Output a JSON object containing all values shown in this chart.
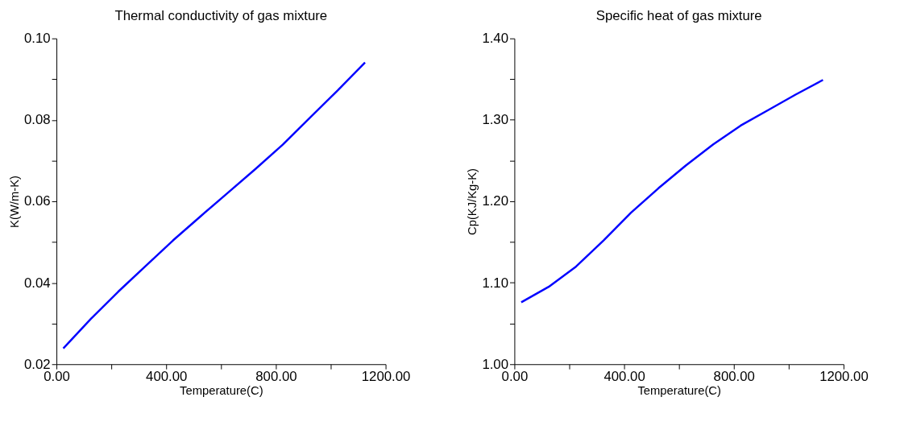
{
  "chart_data": [
    {
      "type": "line",
      "title": "Thermal conductivity of gas mixture",
      "xlabel": "Temperature(C)",
      "ylabel": "K(W/m-K)",
      "x": [
        25,
        125,
        225,
        325,
        425,
        525,
        625,
        725,
        825,
        925,
        1025,
        1125
      ],
      "series": [
        {
          "color": "#0000ff",
          "values": [
            0.0239,
            0.0311,
            0.0378,
            0.0441,
            0.0504,
            0.0563,
            0.0621,
            0.0679,
            0.0739,
            0.0806,
            0.0872,
            0.0941
          ]
        }
      ],
      "xlim": [
        0,
        1200
      ],
      "ylim": [
        0.02,
        0.1
      ],
      "xticks": [
        {
          "value": 0,
          "label": "0.00"
        },
        {
          "value": 200,
          "label": null
        },
        {
          "value": 400,
          "label": "400.00"
        },
        {
          "value": 600,
          "label": null
        },
        {
          "value": 800,
          "label": "800.00"
        },
        {
          "value": 1000,
          "label": null
        },
        {
          "value": 1200,
          "label": "1200.00"
        }
      ],
      "yticks": [
        0.02,
        {
          "value": 0.03,
          "label": null
        },
        0.04,
        {
          "value": 0.05,
          "label": null
        },
        0.06,
        {
          "value": 0.07,
          "label": null
        },
        0.08,
        {
          "value": 0.09,
          "label": null
        },
        {
          "value": 0.1,
          "label": "0.10"
        }
      ],
      "grid": false,
      "marker": "none",
      "line_style": "solid"
    },
    {
      "type": "line",
      "title": "Specific heat of gas mixture",
      "xlabel": "Temperature(C)",
      "ylabel": "Cp(KJ/Kg-K)",
      "x": [
        25,
        125,
        225,
        325,
        425,
        525,
        625,
        725,
        825,
        925,
        1025,
        1125
      ],
      "series": [
        {
          "color": "#0000ff",
          "values": [
            1.076,
            1.095,
            1.12,
            1.152,
            1.186,
            1.216,
            1.244,
            1.27,
            1.293,
            1.312,
            1.331,
            1.349
          ]
        }
      ],
      "xlim": [
        0,
        1200
      ],
      "ylim": [
        1.0,
        1.4
      ],
      "xticks": [
        {
          "value": 0,
          "label": "0.00"
        },
        {
          "value": 200,
          "label": null
        },
        {
          "value": 400,
          "label": "400.00"
        },
        {
          "value": 600,
          "label": null
        },
        {
          "value": 800,
          "label": "800.00"
        },
        {
          "value": 1000,
          "label": null
        },
        {
          "value": 1200,
          "label": "1200.00"
        }
      ],
      "yticks": [
        {
          "value": 1.0,
          "label": "1.00"
        },
        {
          "value": 1.05,
          "label": null
        },
        {
          "value": 1.1,
          "label": "1.10"
        },
        {
          "value": 1.15,
          "label": null
        },
        {
          "value": 1.2,
          "label": "1.20"
        },
        {
          "value": 1.25,
          "label": null
        },
        {
          "value": 1.3,
          "label": "1.30"
        },
        {
          "value": 1.35,
          "label": null
        },
        {
          "value": 1.4,
          "label": "1.40"
        }
      ],
      "grid": false,
      "marker": "none",
      "line_style": "solid"
    }
  ]
}
